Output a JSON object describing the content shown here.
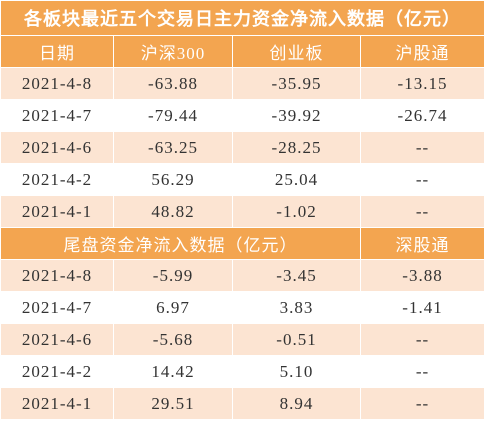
{
  "title": "各板块最近五个交易日主力资金净流入数据（亿元）",
  "section1": {
    "header": [
      "日期",
      "沪深300",
      "创业板",
      "沪股通"
    ],
    "rows": [
      [
        "2021-4-8",
        "-63.88",
        "-35.95",
        "-13.15"
      ],
      [
        "2021-4-7",
        "-79.44",
        "-39.92",
        "-26.74"
      ],
      [
        "2021-4-6",
        "-63.25",
        "-28.25",
        "--"
      ],
      [
        "2021-4-2",
        "56.29",
        "25.04",
        "--"
      ],
      [
        "2021-4-1",
        "48.82",
        "-1.02",
        "--"
      ]
    ]
  },
  "section2": {
    "header": [
      "尾盘资金净流入数据（亿元）",
      "深股通"
    ],
    "rows": [
      [
        "2021-4-8",
        "-5.99",
        "-3.45",
        "-3.88"
      ],
      [
        "2021-4-7",
        "6.97",
        "3.83",
        "-1.41"
      ],
      [
        "2021-4-6",
        "-5.68",
        "-0.51",
        "--"
      ],
      [
        "2021-4-2",
        "14.42",
        "5.10",
        "--"
      ],
      [
        "2021-4-1",
        "29.51",
        "8.94",
        "--"
      ]
    ]
  }
}
